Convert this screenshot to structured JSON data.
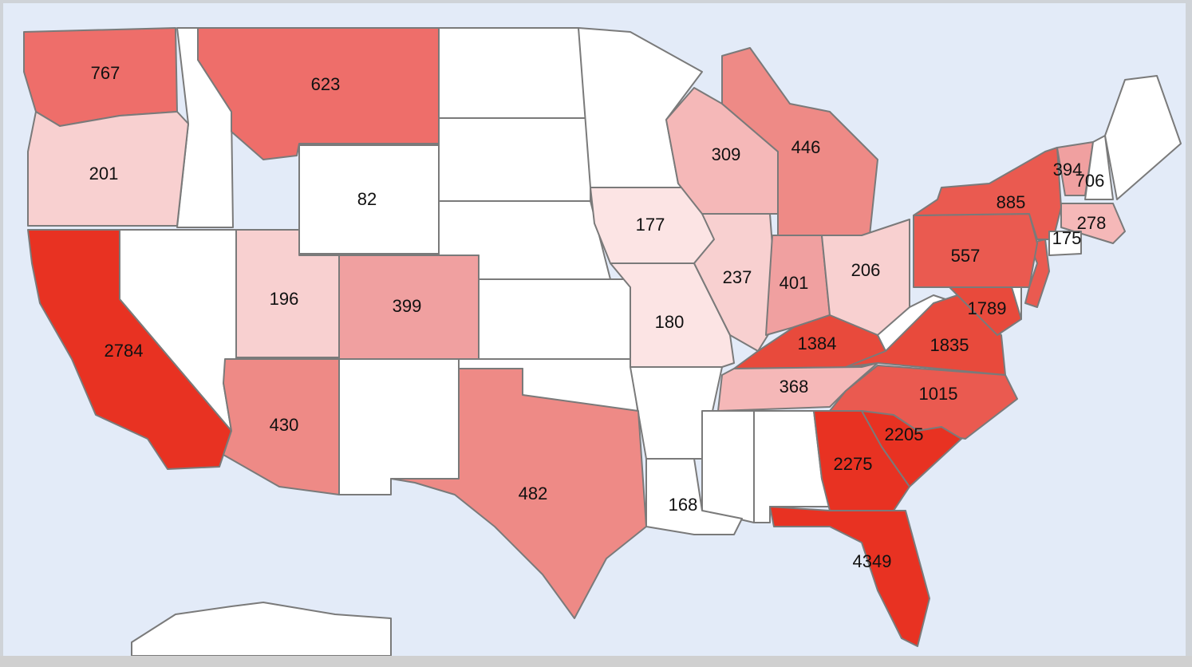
{
  "regions": [
    {
      "value": 767,
      "color": "#ee6e6a"
    },
    {
      "value": 623,
      "color": "#ee6e6a"
    },
    {
      "value": 201,
      "color": "#f8d0d0"
    },
    {
      "value": 82,
      "color": "#ffffff"
    },
    {
      "value": 2784,
      "color": "#e83222"
    },
    {
      "value": 196,
      "color": "#f8d0d0"
    },
    {
      "value": 399,
      "color": "#f0a0a0"
    },
    {
      "value": 430,
      "color": "#ee8a86"
    },
    {
      "value": 482,
      "color": "#ee8a86"
    },
    {
      "value": 177,
      "color": "#fce4e4"
    },
    {
      "value": 180,
      "color": "#fce4e4"
    },
    {
      "value": 237,
      "color": "#f8d0d0"
    },
    {
      "value": 309,
      "color": "#f5b8b8"
    },
    {
      "value": 446,
      "color": "#ee8a86"
    },
    {
      "value": 401,
      "color": "#f0a0a0"
    },
    {
      "value": 206,
      "color": "#f8d0d0"
    },
    {
      "value": 1384,
      "color": "#e84a3c"
    },
    {
      "value": 368,
      "color": "#f5b8b8"
    },
    {
      "value": 1835,
      "color": "#e84a3c"
    },
    {
      "value": 1789,
      "color": "#e84a3c"
    },
    {
      "value": 1015,
      "color": "#ea5a50"
    },
    {
      "value": 2205,
      "color": "#e83222"
    },
    {
      "value": 2275,
      "color": "#e83222"
    },
    {
      "value": 4349,
      "color": "#e83222"
    },
    {
      "value": 168,
      "color": "#ffffff"
    },
    {
      "value": 557,
      "color": "#ea5a50"
    },
    {
      "value": 885,
      "color": "#ea5a50"
    },
    {
      "value": 394,
      "color": "#f0a0a0"
    },
    {
      "value": 706,
      "color": "#ffffff"
    },
    {
      "value": 278,
      "color": "#f5b8b8"
    },
    {
      "value": 175,
      "color": "#ffffff"
    }
  ]
}
